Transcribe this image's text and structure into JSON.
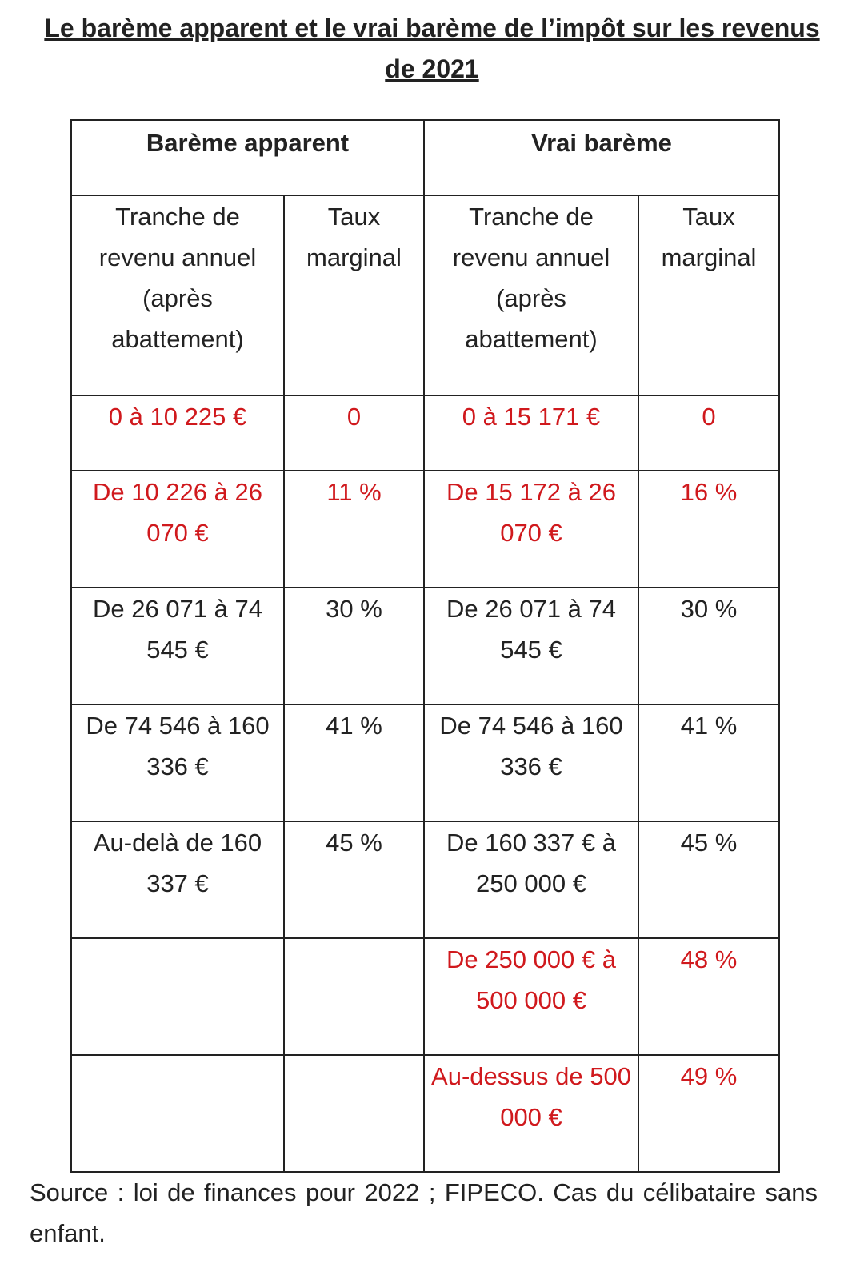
{
  "header": {
    "title": "Le barème apparent et le vrai barème de l’impôt sur les revenus de 2021"
  },
  "table": {
    "groups": [
      "Barème apparent",
      "Vrai barème"
    ],
    "columns": [
      "Tranche de revenu annuel (après abattement)",
      "Taux marginal",
      "Tranche de revenu annuel (après abattement)",
      "Taux marginal"
    ],
    "rows": [
      {
        "apparent": [
          "0 à 10 225 €",
          "0"
        ],
        "vrai": [
          "0 à 15 171 €",
          "0"
        ]
      },
      {
        "apparent": [
          "De 10 226 à 26 070 €",
          "11 %"
        ],
        "vrai": [
          "De 15 172 à 26 070 €",
          "16 %"
        ]
      },
      {
        "apparent": [
          "De 26 071 à 74 545 €",
          "30 %"
        ],
        "vrai": [
          "De 26 071 à 74 545 €",
          "30 %"
        ]
      },
      {
        "apparent": [
          "De 74 546 à 160 336 €",
          "41 %"
        ],
        "vrai": [
          "De 74 546 à 160 336 €",
          "41 %"
        ]
      },
      {
        "apparent": [
          "Au-delà de 160 337 €",
          "45 %"
        ],
        "vrai": [
          "De 160 337 € à 250 000 €",
          "45 %"
        ]
      },
      {
        "vrai": [
          "De 250 000 € à 500 000 €",
          "48 %"
        ]
      },
      {
        "vrai": [
          "Au-dessus de 500 000 €",
          "49 %"
        ]
      }
    ]
  },
  "footer": {
    "source": "Source : loi de finances pour 2022 ; FIPECO. Cas du célibataire sans enfant."
  }
}
